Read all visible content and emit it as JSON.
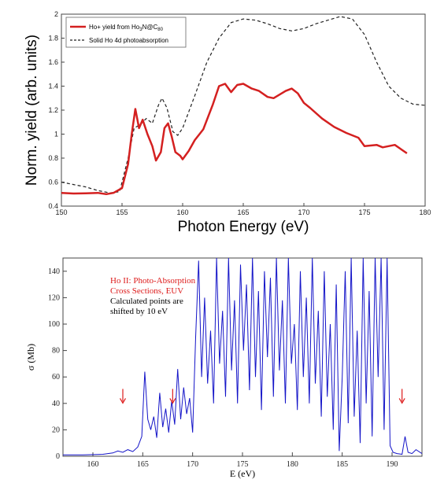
{
  "chart_data": [
    {
      "type": "line",
      "xlabel": "Photon Energy (eV)",
      "ylabel": "Norm. yield (arb. units)",
      "xlim": [
        150,
        180
      ],
      "ylim": [
        0.4,
        2
      ],
      "xticks": [
        "150",
        "155",
        "160",
        "165",
        "170",
        "175",
        "180"
      ],
      "yticks": [
        "0.4",
        "0.6",
        "0.8",
        "1",
        "1.2",
        "1.4",
        "1.6",
        "1.8",
        "2"
      ],
      "legend_position": "top-left",
      "colors": {
        "series1": "#d42020",
        "series2": "#222222"
      },
      "series": [
        {
          "name": "Ho+ yield from Ho₃N@C₈₀",
          "legend_main": "Ho+ yield from Ho",
          "legend_sub1": "3",
          "legend_mid": "N@C",
          "legend_sub2": "80",
          "style": "solid",
          "points": [
            [
              150,
              0.51
            ],
            [
              151,
              0.505
            ],
            [
              152,
              0.507
            ],
            [
              153,
              0.51
            ],
            [
              153.7,
              0.5
            ],
            [
              154.3,
              0.51
            ],
            [
              155,
              0.55
            ],
            [
              155.5,
              0.75
            ],
            [
              155.8,
              1.0
            ],
            [
              156.1,
              1.21
            ],
            [
              156.4,
              1.05
            ],
            [
              156.7,
              1.12
            ],
            [
              157.1,
              1.0
            ],
            [
              157.5,
              0.9
            ],
            [
              157.8,
              0.78
            ],
            [
              158.2,
              0.85
            ],
            [
              158.5,
              1.05
            ],
            [
              158.8,
              1.09
            ],
            [
              159.1,
              0.98
            ],
            [
              159.4,
              0.85
            ],
            [
              159.8,
              0.82
            ],
            [
              160,
              0.79
            ],
            [
              160.5,
              0.86
            ],
            [
              161,
              0.95
            ],
            [
              161.7,
              1.04
            ],
            [
              162.5,
              1.25
            ],
            [
              163,
              1.4
            ],
            [
              163.5,
              1.42
            ],
            [
              164,
              1.35
            ],
            [
              164.5,
              1.41
            ],
            [
              165,
              1.42
            ],
            [
              165.7,
              1.38
            ],
            [
              166.3,
              1.36
            ],
            [
              167,
              1.31
            ],
            [
              167.5,
              1.3
            ],
            [
              168,
              1.33
            ],
            [
              168.5,
              1.36
            ],
            [
              169,
              1.38
            ],
            [
              169.5,
              1.34
            ],
            [
              170,
              1.26
            ],
            [
              170.5,
              1.22
            ],
            [
              171.5,
              1.13
            ],
            [
              172.5,
              1.06
            ],
            [
              173.5,
              1.01
            ],
            [
              174.5,
              0.97
            ],
            [
              175,
              0.9
            ],
            [
              176,
              0.91
            ],
            [
              176.5,
              0.89
            ],
            [
              177.5,
              0.91
            ],
            [
              178.5,
              0.84
            ]
          ]
        },
        {
          "name": "Solid Ho 4d photoabsorption",
          "style": "dashed",
          "points": [
            [
              150,
              0.6
            ],
            [
              151,
              0.58
            ],
            [
              152,
              0.56
            ],
            [
              153,
              0.53
            ],
            [
              154,
              0.51
            ],
            [
              154.8,
              0.52
            ],
            [
              155.5,
              0.8
            ],
            [
              156,
              1.05
            ],
            [
              156.5,
              1.08
            ],
            [
              157,
              1.13
            ],
            [
              157.5,
              1.09
            ],
            [
              158,
              1.24
            ],
            [
              158.3,
              1.3
            ],
            [
              158.7,
              1.22
            ],
            [
              159.2,
              1.02
            ],
            [
              159.6,
              0.99
            ],
            [
              160,
              1.05
            ],
            [
              161,
              1.32
            ],
            [
              162,
              1.6
            ],
            [
              163,
              1.8
            ],
            [
              164,
              1.93
            ],
            [
              165,
              1.96
            ],
            [
              166,
              1.95
            ],
            [
              167,
              1.92
            ],
            [
              168,
              1.88
            ],
            [
              169,
              1.86
            ],
            [
              170,
              1.88
            ],
            [
              171,
              1.92
            ],
            [
              172,
              1.95
            ],
            [
              173,
              1.98
            ],
            [
              174,
              1.96
            ],
            [
              175,
              1.83
            ],
            [
              176,
              1.6
            ],
            [
              177,
              1.4
            ],
            [
              178,
              1.3
            ],
            [
              179,
              1.25
            ],
            [
              180,
              1.24
            ]
          ]
        }
      ]
    },
    {
      "type": "line",
      "xlabel": "E (eV)",
      "ylabel": "σ (Mb)",
      "xlim": [
        157,
        193
      ],
      "ylim": [
        0,
        150
      ],
      "xticks": [
        "160",
        "165",
        "170",
        "175",
        "180",
        "185",
        "190"
      ],
      "yticks": [
        "0",
        "20",
        "40",
        "60",
        "80",
        "100",
        "120",
        "140"
      ],
      "annotation_title_line1": "Ho II: Photo-Absorption",
      "annotation_title_line2": "Cross Sections, EUV",
      "annotation_note_line1": "Calculated points are",
      "annotation_note_line2": "shifted by 10 eV",
      "arrow_x": [
        163,
        168,
        191
      ],
      "colors": {
        "line": "#1414c8",
        "title": "#dd1a1a",
        "note": "#000000",
        "arrow": "#dd1a1a"
      },
      "series": [
        {
          "style": "solid",
          "points": [
            [
              157,
              1
            ],
            [
              159,
              1
            ],
            [
              161,
              1.5
            ],
            [
              162,
              2.5
            ],
            [
              162.5,
              4
            ],
            [
              163,
              3
            ],
            [
              163.5,
              5
            ],
            [
              164,
              3.5
            ],
            [
              164.5,
              7
            ],
            [
              164.9,
              15
            ],
            [
              165.2,
              64
            ],
            [
              165.5,
              28
            ],
            [
              165.8,
              20
            ],
            [
              166.1,
              30
            ],
            [
              166.4,
              14
            ],
            [
              166.7,
              48
            ],
            [
              167,
              22
            ],
            [
              167.3,
              36
            ],
            [
              167.6,
              18
            ],
            [
              167.9,
              42
            ],
            [
              168.2,
              24
            ],
            [
              168.5,
              66
            ],
            [
              168.8,
              28
            ],
            [
              169.1,
              52
            ],
            [
              169.4,
              32
            ],
            [
              169.7,
              44
            ],
            [
              170,
              18
            ],
            [
              170.3,
              90
            ],
            [
              170.6,
              148
            ],
            [
              170.9,
              60
            ],
            [
              171.2,
              120
            ],
            [
              171.5,
              55
            ],
            [
              171.8,
              95
            ],
            [
              172.1,
              40
            ],
            [
              172.4,
              150
            ],
            [
              172.7,
              70
            ],
            [
              173,
              110
            ],
            [
              173.3,
              45
            ],
            [
              173.6,
              150
            ],
            [
              173.9,
              65
            ],
            [
              174.2,
              118
            ],
            [
              174.5,
              40
            ],
            [
              174.8,
              145
            ],
            [
              175.1,
              80
            ],
            [
              175.4,
              130
            ],
            [
              175.7,
              50
            ],
            [
              176,
              150
            ],
            [
              176.3,
              60
            ],
            [
              176.6,
              125
            ],
            [
              176.9,
              35
            ],
            [
              177.2,
              140
            ],
            [
              177.5,
              75
            ],
            [
              177.8,
              135
            ],
            [
              178.1,
              45
            ],
            [
              178.4,
              150
            ],
            [
              178.7,
              65
            ],
            [
              179,
              118
            ],
            [
              179.3,
              40
            ],
            [
              179.6,
              150
            ],
            [
              179.9,
              70
            ],
            [
              180.2,
              100
            ],
            [
              180.5,
              35
            ],
            [
              180.8,
              140
            ],
            [
              181.1,
              60
            ],
            [
              181.4,
              120
            ],
            [
              181.7,
              40
            ],
            [
              182,
              150
            ],
            [
              182.3,
              55
            ],
            [
              182.6,
              110
            ],
            [
              182.9,
              30
            ],
            [
              183.2,
              140
            ],
            [
              183.5,
              45
            ],
            [
              183.8,
              100
            ],
            [
              184.1,
              20
            ],
            [
              184.4,
              130
            ],
            [
              184.7,
              4
            ],
            [
              185,
              60
            ],
            [
              185.3,
              140
            ],
            [
              185.6,
              25
            ],
            [
              185.9,
              150
            ],
            [
              186.2,
              30
            ],
            [
              186.5,
              95
            ],
            [
              186.8,
              10
            ],
            [
              187.1,
              150
            ],
            [
              187.4,
              40
            ],
            [
              187.7,
              125
            ],
            [
              188,
              15
            ],
            [
              188.3,
              150
            ],
            [
              188.6,
              60
            ],
            [
              188.9,
              150
            ],
            [
              189.2,
              20
            ],
            [
              189.5,
              150
            ],
            [
              189.8,
              8
            ],
            [
              190.1,
              3
            ],
            [
              190.5,
              2
            ],
            [
              191,
              1.5
            ],
            [
              191.3,
              15
            ],
            [
              191.6,
              3
            ],
            [
              192,
              2
            ],
            [
              192.4,
              5
            ],
            [
              193,
              2
            ]
          ]
        }
      ]
    }
  ]
}
